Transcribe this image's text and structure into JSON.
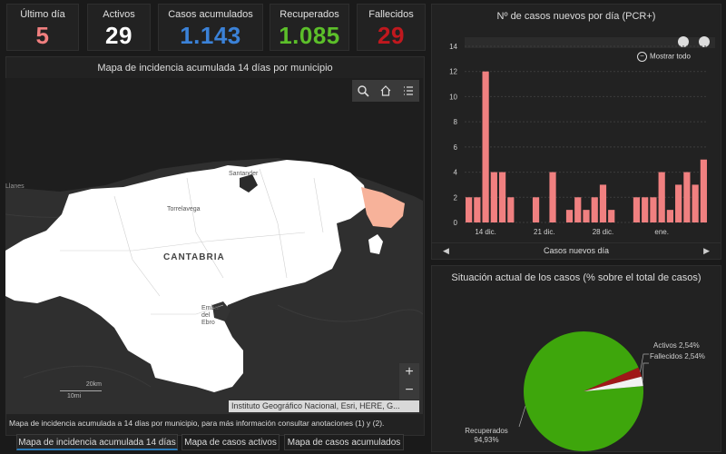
{
  "stats": [
    {
      "label": "Último día",
      "value": "5",
      "color": "#f07f7f"
    },
    {
      "label": "Activos",
      "value": "29",
      "color": "#ffffff"
    },
    {
      "label": "Casos acumulados",
      "value": "1.143",
      "color": "#3b82d8"
    },
    {
      "label": "Recuperados",
      "value": "1.085",
      "color": "#5cbf2a"
    },
    {
      "label": "Fallecidos",
      "value": "29",
      "color": "#c0181e"
    }
  ],
  "map": {
    "title": "Mapa de incidencia acumulada 14 días por municipio",
    "labels": {
      "region": "CANTABRIA",
      "santander": "Santander",
      "torrelavega": "Torrelavega",
      "llanes": "Llanes",
      "embalse1": "Embal",
      "embalse2": "del",
      "embalse3": "Ebro"
    },
    "scale": {
      "km": "20km",
      "mi": "10mi"
    },
    "zoom_in": "+",
    "zoom_out": "−",
    "attribution": "Instituto Geográfico Nacional, Esri, HERE, G...",
    "caption": "Mapa de incidencia acumulada a 14 días por municipio, para más información consultar anotaciones (1) y (2).",
    "tools": [
      "search-icon",
      "home-icon",
      "layer-list-icon"
    ]
  },
  "tabs": [
    {
      "label": "Mapa de incidencia acumulada 14 días",
      "active": true
    },
    {
      "label": "Mapa de casos activos",
      "active": false
    },
    {
      "label": "Mapa de casos acumulados",
      "active": false
    }
  ],
  "bar_panel": {
    "title": "Nº de casos nuevos por día (PCR+)",
    "show_all": "Mostrar todo",
    "footer": "Casos nuevos día"
  },
  "pie_panel": {
    "title": "Situación actual de los casos (% sobre el total de casos)"
  },
  "chart_data": [
    {
      "type": "bar",
      "title": "Nº de casos nuevos por día (PCR+)",
      "xlabel": "Casos nuevos día",
      "ylabel": "",
      "ylim": [
        0,
        14
      ],
      "yticks": [
        0,
        2,
        4,
        6,
        8,
        10,
        12,
        14
      ],
      "xtick_labels": [
        {
          "label": "14 dic.",
          "index": 2
        },
        {
          "label": "21 dic.",
          "index": 9
        },
        {
          "label": "28 dic.",
          "index": 16
        },
        {
          "label": "ene.",
          "index": 23
        }
      ],
      "values": [
        2,
        2,
        12,
        4,
        4,
        2,
        0,
        0,
        2,
        0,
        4,
        0,
        1,
        2,
        1,
        2,
        3,
        1,
        0,
        0,
        2,
        2,
        2,
        4,
        1,
        3,
        4,
        3,
        5
      ],
      "color": "#f08080",
      "grid": true
    },
    {
      "type": "pie",
      "title": "Situación actual de los casos (% sobre el total de casos)",
      "slices": [
        {
          "label": "Recuperados",
          "value": 94.93,
          "display": "94,93%",
          "color": "#3ea60c"
        },
        {
          "label": "Activos",
          "value": 2.54,
          "display": "2,54%",
          "color": "#a01818"
        },
        {
          "label": "Fallecidos",
          "value": 2.54,
          "display": "2,54%",
          "color": "#f2f2f2"
        }
      ]
    }
  ]
}
